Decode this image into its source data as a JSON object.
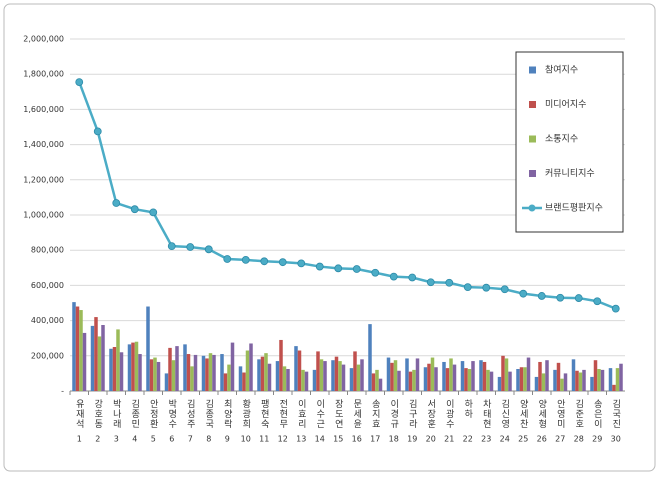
{
  "chart_data": {
    "type": "bar",
    "categories": [
      "유재석",
      "강호동",
      "박나래",
      "김종민",
      "안정환",
      "박명수",
      "김성주",
      "김종국",
      "최양락",
      "황광희",
      "팽현숙",
      "전현무",
      "이효리",
      "이수근",
      "장도연",
      "문세윤",
      "송지효",
      "이경규",
      "김구라",
      "서장훈",
      "이광수",
      "하하",
      "차태현",
      "김신영",
      "양세찬",
      "양세형",
      "안영미",
      "김준호",
      "송은이",
      "김국진"
    ],
    "category_ranks": [
      1,
      2,
      3,
      4,
      5,
      6,
      7,
      8,
      9,
      10,
      11,
      12,
      13,
      14,
      15,
      16,
      17,
      18,
      19,
      20,
      21,
      22,
      23,
      24,
      25,
      26,
      27,
      28,
      29,
      30
    ],
    "series": [
      {
        "name": "참여지수",
        "color": "#4f81bd",
        "values": [
          505000,
          370000,
          240000,
          265000,
          480000,
          100000,
          265000,
          200000,
          210000,
          140000,
          180000,
          170000,
          255000,
          120000,
          175000,
          130000,
          380000,
          190000,
          185000,
          135000,
          165000,
          170000,
          175000,
          80000,
          125000,
          80000,
          120000,
          180000,
          80000,
          130000
        ]
      },
      {
        "name": "미디어지수",
        "color": "#c0504d",
        "values": [
          480000,
          420000,
          250000,
          275000,
          180000,
          245000,
          210000,
          185000,
          100000,
          105000,
          195000,
          290000,
          230000,
          225000,
          195000,
          225000,
          100000,
          160000,
          110000,
          155000,
          130000,
          130000,
          165000,
          200000,
          135000,
          165000,
          160000,
          115000,
          175000,
          35000
        ]
      },
      {
        "name": "소통지수",
        "color": "#9bbb59",
        "values": [
          460000,
          310000,
          350000,
          280000,
          190000,
          175000,
          140000,
          215000,
          150000,
          230000,
          215000,
          140000,
          120000,
          180000,
          170000,
          150000,
          120000,
          175000,
          120000,
          190000,
          185000,
          125000,
          120000,
          185000,
          135000,
          100000,
          70000,
          105000,
          125000,
          130000
        ]
      },
      {
        "name": "커뮤니티지수",
        "color": "#8064a2",
        "values": [
          330000,
          375000,
          220000,
          210000,
          165000,
          255000,
          205000,
          205000,
          275000,
          270000,
          155000,
          125000,
          110000,
          170000,
          150000,
          180000,
          70000,
          115000,
          185000,
          135000,
          150000,
          170000,
          110000,
          110000,
          190000,
          175000,
          100000,
          120000,
          120000,
          155000
        ]
      },
      {
        "name": "브랜드평판지수",
        "type": "line",
        "color": "#4bacc6",
        "values": [
          1755000,
          1475000,
          1068000,
          1033000,
          1015000,
          823000,
          818000,
          805000,
          750000,
          745000,
          737000,
          732000,
          725000,
          707000,
          697000,
          693000,
          672000,
          650000,
          645000,
          618000,
          615000,
          590000,
          587000,
          578000,
          553000,
          540000,
          530000,
          528000,
          510000,
          468000
        ]
      }
    ],
    "ylim": [
      0,
      2000000
    ],
    "yticks": [
      {
        "value": 0,
        "label": "-"
      },
      {
        "value": 200000,
        "label": "200,000"
      },
      {
        "value": 400000,
        "label": "400,000"
      },
      {
        "value": 600000,
        "label": "600,000"
      },
      {
        "value": 800000,
        "label": "800,000"
      },
      {
        "value": 1000000,
        "label": "1,000,000"
      },
      {
        "value": 1200000,
        "label": "1,200,000"
      },
      {
        "value": 1400000,
        "label": "1,400,000"
      },
      {
        "value": 1600000,
        "label": "1,600,000"
      },
      {
        "value": 1800000,
        "label": "1,800,000"
      },
      {
        "value": 2000000,
        "label": "2,000,000"
      }
    ],
    "grid": true,
    "legend": "right"
  }
}
